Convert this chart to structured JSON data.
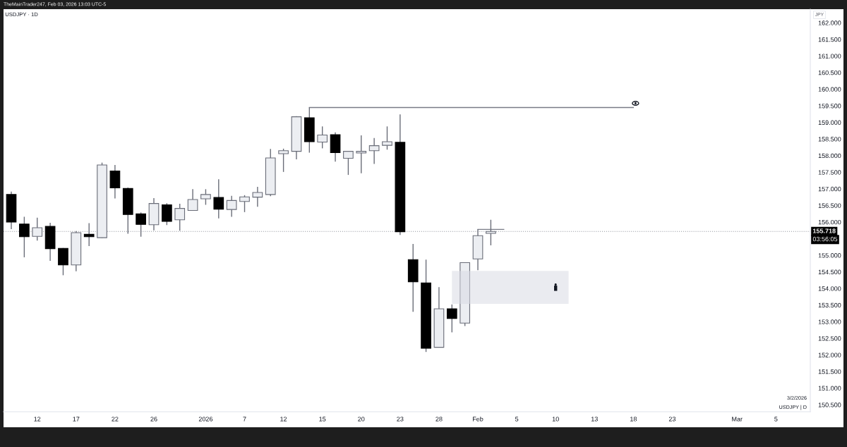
{
  "chart_data": {
    "type": "candlestick",
    "title": "USDJPY · 1D",
    "subtitle": "TheMainTrader247, Feb 03, 2026 13:03 UTC-5",
    "ylabel": "JPY",
    "categories": [
      null,
      null,
      "12",
      null,
      null,
      "17",
      null,
      null,
      "22",
      null,
      null,
      "26",
      null,
      null,
      null,
      "2026",
      null,
      null,
      "7",
      null,
      null,
      "12",
      null,
      null,
      "15",
      null,
      null,
      "20",
      null,
      null,
      "23",
      null,
      null,
      "28",
      null,
      null,
      "Feb",
      null,
      null,
      "5",
      null,
      null,
      "10",
      null,
      null,
      "13",
      null,
      null,
      "18",
      null,
      null,
      "23",
      null,
      null,
      null,
      null,
      "Mar",
      null,
      null,
      "5",
      null,
      null
    ],
    "ohlc": [
      [
        156.83,
        156.92,
        155.79,
        156.0
      ],
      [
        155.94,
        156.16,
        154.94,
        155.56
      ],
      [
        155.57,
        156.13,
        155.44,
        155.83
      ],
      [
        155.87,
        155.98,
        154.83,
        155.2
      ],
      [
        155.21,
        155.22,
        154.4,
        154.71
      ],
      [
        154.71,
        155.73,
        154.52,
        155.68
      ],
      [
        155.63,
        155.97,
        155.28,
        155.56
      ],
      [
        155.53,
        157.79,
        155.52,
        157.72
      ],
      [
        157.54,
        157.72,
        156.71,
        157.03
      ],
      [
        157.01,
        157.04,
        155.65,
        156.23
      ],
      [
        156.25,
        156.29,
        155.56,
        155.93
      ],
      [
        155.92,
        156.72,
        155.75,
        156.56
      ],
      [
        156.52,
        156.57,
        155.91,
        156.02
      ],
      [
        156.07,
        156.55,
        155.74,
        156.41
      ],
      [
        156.35,
        156.99,
        156.34,
        156.68
      ],
      [
        156.7,
        156.99,
        156.52,
        156.83
      ],
      [
        156.74,
        157.29,
        156.11,
        156.39
      ],
      [
        156.38,
        156.79,
        156.16,
        156.65
      ],
      [
        156.62,
        156.81,
        156.3,
        156.76
      ],
      [
        156.75,
        157.06,
        156.46,
        156.89
      ],
      [
        156.83,
        158.2,
        156.78,
        157.93
      ],
      [
        158.06,
        158.21,
        157.51,
        158.15
      ],
      [
        158.13,
        159.19,
        157.89,
        159.17
      ],
      [
        159.14,
        159.45,
        158.09,
        158.42
      ],
      [
        158.41,
        158.88,
        158.22,
        158.62
      ],
      [
        158.63,
        158.7,
        157.82,
        158.09
      ],
      [
        157.92,
        158.14,
        157.42,
        158.13
      ],
      [
        158.08,
        158.61,
        157.47,
        158.13
      ],
      [
        158.15,
        158.53,
        157.75,
        158.3
      ],
      [
        158.31,
        158.88,
        158.18,
        158.42
      ],
      [
        158.4,
        159.24,
        155.61,
        155.71
      ],
      [
        154.87,
        155.34,
        153.3,
        154.2
      ],
      [
        154.17,
        154.87,
        152.09,
        152.2
      ],
      [
        152.23,
        154.04,
        152.22,
        153.39
      ],
      [
        153.39,
        153.52,
        152.68,
        153.1
      ],
      [
        152.96,
        154.79,
        152.87,
        154.78
      ],
      [
        154.89,
        155.78,
        154.55,
        155.59
      ],
      [
        155.66,
        156.07,
        155.3,
        155.72
      ],
      null,
      null,
      null,
      null,
      null,
      null,
      null,
      null,
      null,
      null,
      null,
      null,
      null,
      null,
      null,
      null,
      null,
      null,
      null,
      null,
      null,
      null,
      null,
      null
    ],
    "colors": [
      "#000000",
      "#000000",
      "#eceef2",
      "#000000",
      "#000000",
      "#eceef2",
      "#000000",
      "#eceef2",
      "#000000",
      "#000000",
      "#000000",
      "#eceef2",
      "#000000",
      "#eceef2",
      "#eceef2",
      "#eceef2",
      "#000000",
      "#eceef2",
      "#eceef2",
      "#eceef2",
      "#eceef2",
      "#eceef2",
      "#eceef2",
      "#000000",
      "#eceef2",
      "#000000",
      "#eceef2",
      "#eceef2",
      "#eceef2",
      "#eceef2",
      "#000000",
      "#000000",
      "#000000",
      "#eceef2",
      "#000000",
      "#eceef2",
      "#eceef2",
      "#eceef2",
      null,
      null,
      null,
      null,
      null,
      null,
      null,
      null,
      null,
      null,
      null,
      null,
      null,
      null,
      null,
      null,
      null,
      null,
      null,
      null,
      null,
      null,
      null,
      null
    ],
    "color": "#6a6d78",
    "series": [
      {
        "type": "line",
        "color": "#787b86",
        "values": [
          null,
          null,
          null,
          null,
          null,
          null,
          null,
          null,
          null,
          null,
          null,
          null,
          null,
          null,
          null,
          null,
          null,
          null,
          null,
          null,
          null,
          null,
          null,
          159.45,
          159.45,
          159.45,
          159.45,
          159.45,
          159.45,
          159.45,
          159.45,
          159.45,
          159.45,
          159.45,
          159.45,
          159.45,
          159.45,
          159.45,
          159.45,
          159.45,
          159.45,
          159.45,
          159.45,
          159.45,
          159.45,
          159.45,
          159.45,
          159.45,
          159.45,
          null,
          null,
          null,
          null,
          null,
          null,
          null,
          null,
          null,
          null,
          null,
          null,
          null
        ]
      },
      {
        "type": "line",
        "color": "#787b86",
        "values": [
          null,
          null,
          null,
          null,
          null,
          null,
          null,
          null,
          null,
          null,
          null,
          null,
          null,
          null,
          null,
          null,
          null,
          null,
          null,
          null,
          null,
          null,
          null,
          null,
          null,
          null,
          null,
          null,
          null,
          null,
          null,
          null,
          null,
          null,
          null,
          null,
          155.78,
          155.78,
          155.78,
          null,
          null,
          null,
          null,
          null,
          null,
          null,
          null,
          null,
          null,
          null,
          null,
          null,
          null,
          null,
          null,
          null,
          null,
          null,
          null,
          null,
          null,
          null
        ]
      },
      {
        "type": "area",
        "color": "#eaebf0",
        "values": [
          null,
          null,
          null,
          null,
          null,
          null,
          null,
          null,
          null,
          null,
          null,
          null,
          null,
          null,
          null,
          null,
          null,
          null,
          null,
          null,
          null,
          null,
          null,
          null,
          null,
          null,
          null,
          null,
          null,
          null,
          null,
          null,
          null,
          null,
          null,
          null,
          null,
          null,
          null,
          null,
          null,
          null,
          null,
          null,
          null,
          null,
          null,
          null,
          null,
          null,
          null,
          null,
          null,
          null,
          null,
          null,
          null,
          null,
          null,
          null,
          null,
          null
        ],
        "upper": [
          null,
          null,
          null,
          null,
          null,
          null,
          null,
          null,
          null,
          null,
          null,
          null,
          null,
          null,
          null,
          null,
          null,
          null,
          null,
          null,
          null,
          null,
          null,
          null,
          null,
          null,
          null,
          null,
          null,
          null,
          null,
          null,
          null,
          null,
          154.53,
          154.53,
          154.53,
          154.53,
          154.53,
          154.53,
          154.53,
          154.53,
          154.53,
          154.53,
          null,
          null,
          null,
          null,
          null,
          null,
          null,
          null,
          null,
          null,
          null,
          null,
          null,
          null,
          null,
          null,
          null,
          null
        ],
        "lower": [
          null,
          null,
          null,
          null,
          null,
          null,
          null,
          null,
          null,
          null,
          null,
          null,
          null,
          null,
          null,
          null,
          null,
          null,
          null,
          null,
          null,
          null,
          null,
          null,
          null,
          null,
          null,
          null,
          null,
          null,
          null,
          null,
          null,
          null,
          153.54,
          153.54,
          153.54,
          153.54,
          153.54,
          153.54,
          153.54,
          153.54,
          153.54,
          153.54,
          null,
          null,
          null,
          null,
          null,
          null,
          null,
          null,
          null,
          null,
          null,
          null,
          null,
          null,
          null,
          null,
          null,
          null
        ]
      }
    ],
    "ref_lines": [
      {
        "axis": "y",
        "value": 155.718,
        "label": "155.718",
        "line_style": "dotted",
        "color": "#9598a1"
      }
    ],
    "annotations": [
      {
        "text": "03:56:05",
        "y": 155.718
      },
      "3/2/2026",
      "USDJPY | D"
    ],
    "ylim": [
      150.29,
      162.41
    ],
    "yticks": [
      {
        "value": 162,
        "label": "162.000"
      },
      {
        "value": 161.5,
        "label": "161.500"
      },
      {
        "value": 161,
        "label": "161.000"
      },
      {
        "value": 160.5,
        "label": "160.500"
      },
      {
        "value": 160,
        "label": "160.000"
      },
      {
        "value": 159.5,
        "label": "159.500"
      },
      {
        "value": 159,
        "label": "159.000"
      },
      {
        "value": 158.5,
        "label": "158.500"
      },
      {
        "value": 158,
        "label": "158.000"
      },
      {
        "value": 157.5,
        "label": "157.500"
      },
      {
        "value": 157,
        "label": "157.000"
      },
      {
        "value": 156.5,
        "label": "156.500"
      },
      {
        "value": 156,
        "label": "156.000"
      },
      {
        "value": 155,
        "label": "155.000"
      },
      {
        "value": 154.5,
        "label": "154.500"
      },
      {
        "value": 154,
        "label": "154.000"
      },
      {
        "value": 153.5,
        "label": "153.500"
      },
      {
        "value": 153,
        "label": "153.000"
      },
      {
        "value": 152.5,
        "label": "152.500"
      },
      {
        "value": 152,
        "label": "152.000"
      },
      {
        "value": 151.5,
        "label": "151.500"
      },
      {
        "value": 151,
        "label": "151.000"
      },
      {
        "value": 150.5,
        "label": "150.500"
      }
    ]
  }
}
